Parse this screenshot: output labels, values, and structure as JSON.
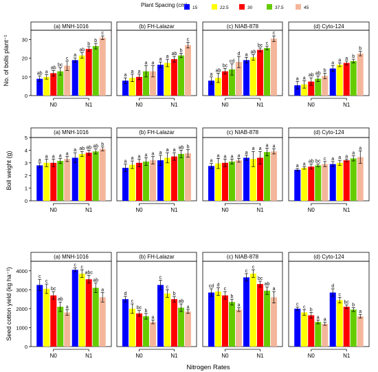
{
  "legend": {
    "title": "Plant Spacing (cm)",
    "items": [
      {
        "label": "15",
        "color": "#0000ff"
      },
      {
        "label": "22.5",
        "color": "#ffff00"
      },
      {
        "label": "30",
        "color": "#ff0000"
      },
      {
        "label": "37.5",
        "color": "#66cc00"
      },
      {
        "label": "45",
        "color": "#f4b69a"
      }
    ]
  },
  "x_axis_title": "Nitrogen Rates",
  "chart_data": [
    {
      "type": "bar",
      "row": 1,
      "ylabel": "No. of bolls plant⁻¹",
      "ylim": [
        0,
        35
      ],
      "yticks": [
        0,
        10,
        20,
        30
      ],
      "categories": [
        "N0",
        "N1"
      ],
      "panels": [
        {
          "title": "(a) MNH-1016",
          "values": [
            [
              9,
              10,
              12,
              13,
              16
            ],
            [
              19,
              21.5,
              25,
              26.5,
              31
            ]
          ],
          "errors": [
            [
              1.5,
              1.2,
              1.5,
              2,
              2.5
            ],
            [
              1.2,
              1.5,
              1.2,
              1.5,
              1
            ]
          ],
          "letters": [
            [
              "ab",
              "a",
              "ab",
              "bc",
              "c"
            ],
            [
              "a",
              "ab",
              "b",
              "b",
              "c"
            ]
          ]
        },
        {
          "title": "(b) FH-Lalazar",
          "values": [
            [
              8,
              9.5,
              10,
              13,
              13
            ],
            [
              16.5,
              17.5,
              19.5,
              21.5,
              27
            ]
          ],
          "errors": [
            [
              1.5,
              2,
              1.5,
              3,
              3
            ],
            [
              1.5,
              2,
              1.5,
              1.2,
              1.5
            ]
          ],
          "letters": [
            [
              "a",
              "a",
              "a",
              "a",
              "a"
            ],
            [
              "a",
              "a",
              "ab",
              "b",
              "c"
            ]
          ]
        },
        {
          "title": "(c) NIAB-878",
          "values": [
            [
              8,
              9.5,
              13,
              14,
              18
            ],
            [
              19,
              20.5,
              24.5,
              25.5,
              30.5
            ]
          ],
          "errors": [
            [
              2,
              2.5,
              1.5,
              3,
              3
            ],
            [
              1.5,
              1.5,
              1,
              1,
              1.5
            ]
          ],
          "letters": [
            [
              "a",
              "ab",
              "bc",
              "cd",
              "d"
            ],
            [
              "a",
              "ab",
              "bc",
              "c",
              "c"
            ]
          ]
        },
        {
          "title": "(d) Cyto-124",
          "values": [
            [
              5.5,
              6,
              7.5,
              9,
              10.5
            ],
            [
              14.5,
              16.5,
              17.5,
              18.5,
              22.5
            ]
          ],
          "errors": [
            [
              2,
              2,
              2,
              1.5,
              1.5
            ],
            [
              1.5,
              1,
              1,
              1,
              1.2
            ]
          ],
          "letters": [
            [
              "a",
              "a",
              "ab",
              "ab",
              "b"
            ],
            [
              "a",
              "a",
              "a",
              "b",
              "b"
            ]
          ]
        }
      ]
    },
    {
      "type": "bar",
      "row": 2,
      "ylabel": "Boll weight (g)",
      "ylim": [
        0,
        5
      ],
      "yticks": [
        0,
        1,
        2,
        3,
        4,
        5
      ],
      "categories": [
        "N0",
        "N1"
      ],
      "panels": [
        {
          "title": "(a) MNH-1016",
          "values": [
            [
              2.8,
              3.0,
              3.0,
              3.15,
              3.3
            ],
            [
              3.4,
              3.7,
              3.8,
              3.9,
              4.1
            ]
          ],
          "errors": [
            [
              0.2,
              0.3,
              0.3,
              0.2,
              0.2
            ],
            [
              0.4,
              0.2,
              0.2,
              0.2,
              0.15
            ]
          ],
          "letters": [
            [
              "a",
              "a",
              "a",
              "a",
              "a"
            ],
            [
              "a",
              "ab",
              "ab",
              "ab",
              "b"
            ]
          ]
        },
        {
          "title": "(b) FH-Lalazar",
          "values": [
            [
              2.6,
              2.85,
              3.0,
              3.1,
              3.2
            ],
            [
              3.2,
              3.4,
              3.5,
              3.7,
              3.75
            ]
          ],
          "errors": [
            [
              0.3,
              0.3,
              0.3,
              0.3,
              0.3
            ],
            [
              0.4,
              0.4,
              0.3,
              0.3,
              0.3
            ]
          ],
          "letters": [
            [
              "a",
              "a",
              "a",
              "a",
              "a"
            ],
            [
              "a",
              "a",
              "a",
              "ab",
              "b"
            ]
          ]
        },
        {
          "title": "(c) NIAB-878",
          "values": [
            [
              2.75,
              2.95,
              3.0,
              3.1,
              3.2
            ],
            [
              3.4,
              3.3,
              3.4,
              3.85,
              3.9
            ]
          ],
          "errors": [
            [
              0.2,
              0.4,
              0.3,
              0.2,
              0.15
            ],
            [
              0.2,
              0.6,
              0.5,
              0.3,
              0.2
            ]
          ],
          "letters": [
            [
              "a",
              "a",
              "a",
              "a",
              "a"
            ],
            [
              "a",
              "a",
              "a",
              "a",
              "a"
            ]
          ]
        },
        {
          "title": "(d) Cyto-124",
          "values": [
            [
              2.45,
              2.6,
              2.7,
              2.8,
              2.9
            ],
            [
              2.9,
              3.0,
              3.2,
              3.35,
              3.45
            ]
          ],
          "errors": [
            [
              0.1,
              0.1,
              0.2,
              0.1,
              0.2
            ],
            [
              0.2,
              0.2,
              0.1,
              0.2,
              0.5
            ]
          ],
          "letters": [
            [
              "a",
              "a",
              "ab",
              "bc",
              "c"
            ],
            [
              "a",
              "a",
              "a",
              "a",
              "a"
            ]
          ]
        }
      ]
    },
    {
      "type": "bar",
      "row": 3,
      "ylabel": "Seed cotton yield (kg ha⁻¹)",
      "ylim": [
        0,
        4500
      ],
      "yticks": [
        0,
        1000,
        2000,
        3000,
        4000
      ],
      "categories": [
        "N0",
        "N1"
      ],
      "panels": [
        {
          "title": "(a) MNH-1016",
          "values": [
            [
              3250,
              3050,
              2700,
              2100,
              1800
            ],
            [
              4050,
              3850,
              3550,
              3100,
              2600
            ]
          ],
          "errors": [
            [
              300,
              250,
              200,
              250,
              150
            ],
            [
              100,
              200,
              200,
              250,
              250
            ]
          ],
          "letters": [
            [
              "c",
              "c",
              "bc",
              "ab",
              "a"
            ],
            [
              "c",
              "c",
              "abc",
              "ab",
              "a"
            ]
          ]
        },
        {
          "title": "(b) FH-Lalazar",
          "values": [
            [
              2500,
              2000,
              1750,
              1600,
              1300
            ],
            [
              3250,
              2800,
              2500,
              2050,
              1850
            ]
          ],
          "errors": [
            [
              150,
              250,
              150,
              150,
              100
            ],
            [
              250,
              200,
              150,
              200,
              100
            ]
          ],
          "letters": [
            [
              "d",
              "c",
              "bc",
              "b",
              "a"
            ],
            [
              "c",
              "c",
              "b",
              "ab",
              "a"
            ]
          ]
        },
        {
          "title": "(c) NIAB-878",
          "values": [
            [
              2850,
              2900,
              2700,
              2350,
              1950
            ],
            [
              3650,
              3850,
              3300,
              2950,
              2600
            ]
          ],
          "errors": [
            [
              200,
              200,
              200,
              150,
              100
            ],
            [
              200,
              200,
              150,
              200,
              300
            ]
          ],
          "letters": [
            [
              "cd",
              "d",
              "c",
              "b",
              "a"
            ],
            [
              "c",
              "c",
              "bc",
              "ab",
              "a"
            ]
          ]
        },
        {
          "title": "(d) Cyto-124",
          "values": [
            [
              2000,
              1800,
              1650,
              1300,
              1200
            ],
            [
              2850,
              2450,
              2100,
              1950,
              1600
            ]
          ],
          "errors": [
            [
              80,
              150,
              150,
              100,
              80
            ],
            [
              200,
              150,
              100,
              100,
              100
            ]
          ],
          "letters": [
            [
              "c",
              "c",
              "b",
              "a",
              "a"
            ],
            [
              "d",
              "c",
              "bc",
              "b",
              "a"
            ]
          ]
        }
      ]
    }
  ]
}
